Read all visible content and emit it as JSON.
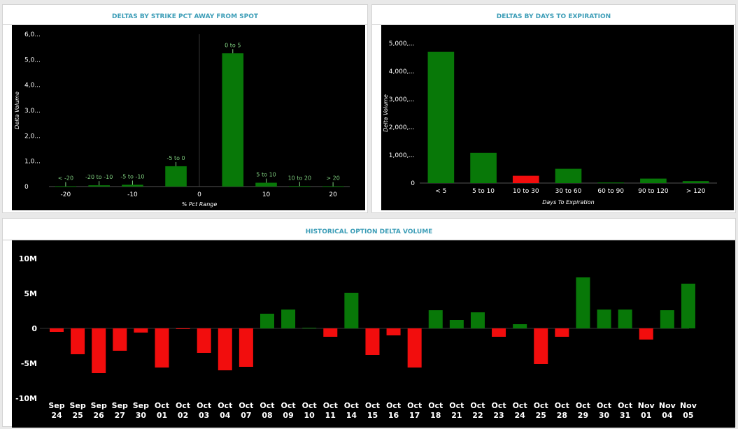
{
  "panels": {
    "strike": {
      "title": "DELTAS BY STRIKE PCT AWAY FROM SPOT"
    },
    "dte": {
      "title": "DELTAS BY DAYS TO EXPIRATION"
    },
    "hist": {
      "title": "HISTORICAL OPTION DELTA VOLUME"
    }
  },
  "colors": {
    "positive": "#087808",
    "negative": "#f20d0d",
    "labels": "#7fcf7f",
    "background": "#000000"
  },
  "chart_data": [
    {
      "type": "bar",
      "title": "DELTAS BY STRIKE PCT AWAY FROM SPOT",
      "xlabel": "% Pct Range",
      "ylabel": "Delta Volume",
      "ylim": [
        0,
        6000
      ],
      "xlim": [
        -22.5,
        22.5
      ],
      "y_tick_labels": [
        "0",
        "1,0...",
        "2,0...",
        "3,0...",
        "4,0...",
        "5,0...",
        "6,0..."
      ],
      "y_ticks": [
        0,
        1000,
        2000,
        3000,
        4000,
        5000,
        6000
      ],
      "x_ticks": [
        -20,
        -10,
        0,
        10,
        20
      ],
      "x_tick_labels": [
        "-20",
        "-10",
        "0",
        "10",
        "20"
      ],
      "bar_labels": [
        "< -20",
        "-20 to -10",
        "-5 to -10",
        "-5 to 0",
        "0 to 5",
        "5 to 10",
        "10 to 20",
        "> 20"
      ],
      "x": [
        -20,
        -15,
        -10,
        -3.5,
        5,
        10,
        15,
        20
      ],
      "values": [
        10,
        50,
        70,
        800,
        5250,
        150,
        20,
        10
      ],
      "bar_width": 3.2
    },
    {
      "type": "bar",
      "title": "DELTAS BY DAYS TO EXPIRATION",
      "xlabel": "Days To Expiration",
      "ylabel": "Delta Volume",
      "ylim": [
        0,
        5000
      ],
      "y_tick_labels": [
        "0",
        "1,000,...",
        "2,000,...",
        "3,000,...",
        "4,000,...",
        "5,000,..."
      ],
      "y_ticks": [
        0,
        1000,
        2000,
        3000,
        4000,
        5000
      ],
      "categories": [
        "< 5",
        "5 to 10",
        "10 to 30",
        "30 to 60",
        "60 to 90",
        "90 to 120",
        "> 120"
      ],
      "values": [
        4700,
        1080,
        260,
        510,
        20,
        160,
        70
      ],
      "colors": [
        "#087808",
        "#087808",
        "#f20d0d",
        "#087808",
        "#087808",
        "#087808",
        "#087808"
      ]
    },
    {
      "type": "bar",
      "title": "HISTORICAL OPTION DELTA VOLUME",
      "ylim": [
        -10000000,
        10000000
      ],
      "y_tick_labels": [
        "-10M",
        "-5M",
        "0",
        "5M",
        "10M"
      ],
      "y_ticks": [
        -10000000,
        -5000000,
        0,
        5000000,
        10000000
      ],
      "categories": [
        [
          "Sep",
          "24"
        ],
        [
          "Sep",
          "25"
        ],
        [
          "Sep",
          "26"
        ],
        [
          "Sep",
          "27"
        ],
        [
          "Sep",
          "30"
        ],
        [
          "Oct",
          "01"
        ],
        [
          "Oct",
          "02"
        ],
        [
          "Oct",
          "03"
        ],
        [
          "Oct",
          "04"
        ],
        [
          "Oct",
          "07"
        ],
        [
          "Oct",
          "08"
        ],
        [
          "Oct",
          "09"
        ],
        [
          "Oct",
          "10"
        ],
        [
          "Oct",
          "11"
        ],
        [
          "Oct",
          "14"
        ],
        [
          "Oct",
          "15"
        ],
        [
          "Oct",
          "16"
        ],
        [
          "Oct",
          "17"
        ],
        [
          "Oct",
          "18"
        ],
        [
          "Oct",
          "21"
        ],
        [
          "Oct",
          "22"
        ],
        [
          "Oct",
          "23"
        ],
        [
          "Oct",
          "24"
        ],
        [
          "Oct",
          "25"
        ],
        [
          "Oct",
          "28"
        ],
        [
          "Oct",
          "29"
        ],
        [
          "Oct",
          "30"
        ],
        [
          "Oct",
          "31"
        ],
        [
          "Nov",
          "01"
        ],
        [
          "Nov",
          "04"
        ],
        [
          "Nov",
          "05"
        ]
      ],
      "values": [
        -500000,
        -3700000,
        -6400000,
        -3200000,
        -600000,
        -5600000,
        -100000,
        -3500000,
        -6000000,
        -5500000,
        2100000,
        2700000,
        100000,
        -1200000,
        5100000,
        -3800000,
        -1000000,
        -5600000,
        2600000,
        1200000,
        2300000,
        -1200000,
        600000,
        -5100000,
        -1200000,
        7300000,
        2700000,
        2700000,
        -1600000,
        2600000,
        6400000
      ]
    }
  ]
}
